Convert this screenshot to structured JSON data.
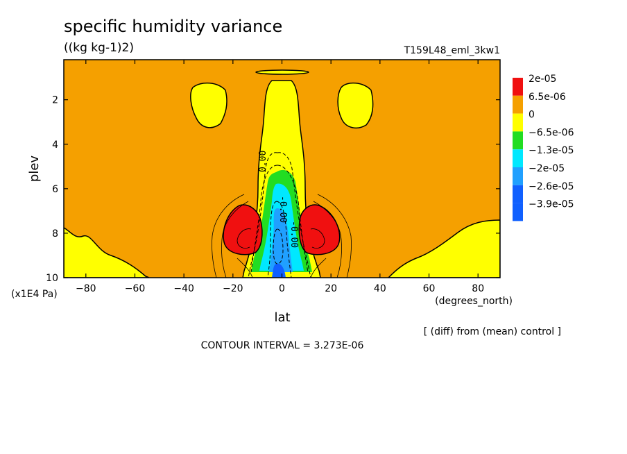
{
  "chart_data": {
    "type": "heatmap",
    "title": "specific humidity variance",
    "units": "((kg kg-1)2)",
    "experiment": "T159L48_eml_3kw1",
    "xlabel": "lat",
    "ylabel": "plev",
    "x_unit": "(degrees_north)",
    "y_unit": "(x1E4 Pa)",
    "x_ticks": [
      -80,
      -60,
      -40,
      -20,
      0,
      20,
      40,
      60,
      80
    ],
    "y_ticks": [
      2,
      4,
      6,
      8,
      10
    ],
    "xlim": [
      -89,
      89
    ],
    "ylim": [
      10,
      0.2
    ],
    "legend": {
      "placement": "right",
      "entries": [
        {
          "label": "2e-05",
          "color": "#f01010"
        },
        {
          "label": "6.5e-06",
          "color": "#f5a000"
        },
        {
          "label": "0",
          "color": "#ffff00"
        },
        {
          "label": "-6.5e-06",
          "color": "#22dd22"
        },
        {
          "label": "-1.3e-05",
          "color": "#00e8ff"
        },
        {
          "label": "-2e-05",
          "color": "#20a0ff"
        },
        {
          "label": "-2.6e-05",
          "color": "#1060ff"
        },
        {
          "label": "-3.9e-05",
          "color": ""
        }
      ]
    },
    "contour_labels": [
      "0.00",
      "-0.00",
      "-0.00"
    ],
    "note": "[ (diff) from (mean) control ]",
    "contour_interval": "CONTOUR INTERVAL = 3.273E-06"
  }
}
